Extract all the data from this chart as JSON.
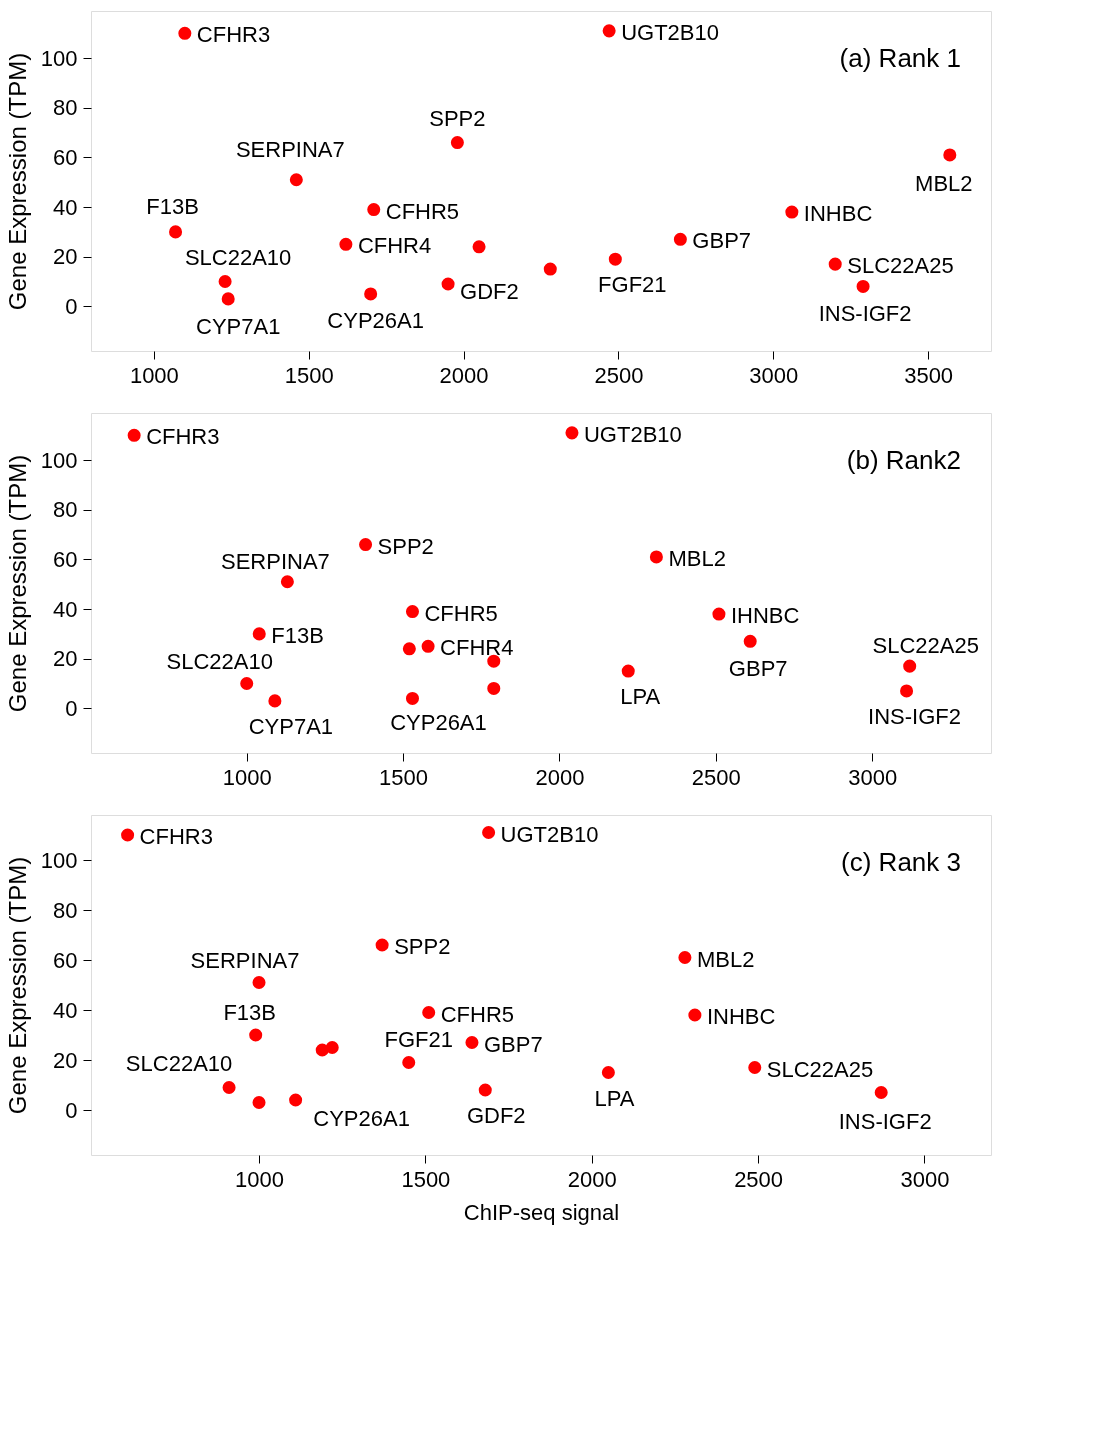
{
  "chart_data": [
    {
      "type": "scatter",
      "ylabel": "Gene Expression (TPM)",
      "xlim": [
        797,
        3703
      ],
      "ylim": [
        -18,
        119
      ],
      "xticks": [
        1000,
        1500,
        2000,
        2500,
        3000,
        3500
      ],
      "yticks": [
        0,
        20,
        40,
        60,
        80,
        100
      ],
      "grid": false,
      "marker": "circle",
      "series": [
        {
          "color": "#ff0000",
          "x": [
            1100,
            2470,
            1980,
            1460,
            3570,
            1070,
            1710,
            3060,
            1620,
            2050,
            2700,
            1230,
            1240,
            1700,
            1950,
            2280,
            2490,
            3200,
            3290
          ],
          "values": [
            110,
            111,
            66,
            51,
            61,
            30,
            39,
            38,
            25,
            24,
            27,
            10,
            3,
            5,
            9,
            15,
            19,
            17,
            8
          ]
        }
      ],
      "annotations": [
        {
          "text": "CFHR3",
          "x": 1100,
          "y": 110
        },
        {
          "text": "UGT2B10",
          "x": 2470,
          "y": 111
        },
        {
          "text": "SPP2",
          "x": 1980,
          "y": 66
        },
        {
          "text": "SERPINA7",
          "x": 1460,
          "y": 51
        },
        {
          "text": "MBL2",
          "x": 3570,
          "y": 61
        },
        {
          "text": "F13B",
          "x": 1070,
          "y": 30
        },
        {
          "text": "CFHR5",
          "x": 1710,
          "y": 39
        },
        {
          "text": "INHBC",
          "x": 3060,
          "y": 38
        },
        {
          "text": "CFHR4",
          "x": 1620,
          "y": 25
        },
        {
          "text": "GBP7",
          "x": 2700,
          "y": 27
        },
        {
          "text": "SLC22A10",
          "x": 1230,
          "y": 10
        },
        {
          "text": "CYP7A1",
          "x": 1240,
          "y": 3
        },
        {
          "text": "CYP26A1",
          "x": 1700,
          "y": 5
        },
        {
          "text": "GDF2",
          "x": 1950,
          "y": 9
        },
        {
          "text": "FGF21",
          "x": 2490,
          "y": 19
        },
        {
          "text": "SLC22A25",
          "x": 3200,
          "y": 17
        },
        {
          "text": "INS-IGF2",
          "x": 3290,
          "y": 8
        },
        "(a) Rank 1"
      ]
    },
    {
      "type": "scatter",
      "ylabel": "Gene Expression (TPM)",
      "xlim": [
        502,
        3380
      ],
      "ylim": [
        -18,
        119
      ],
      "xticks": [
        1000,
        1500,
        2000,
        2500,
        3000
      ],
      "yticks": [
        0,
        20,
        40,
        60,
        80,
        100
      ],
      "grid": false,
      "marker": "circle",
      "series": [
        {
          "color": "#ff0000",
          "x": [
            640,
            2040,
            1380,
            1130,
            2310,
            1530,
            2510,
            1040,
            1520,
            1580,
            2610,
            1790,
            2220,
            3120,
            1000,
            1090,
            1530,
            1790,
            3110
          ],
          "values": [
            110,
            111,
            66,
            51,
            61,
            39,
            38,
            30,
            24,
            25,
            27,
            19,
            15,
            17,
            10,
            3,
            4,
            8,
            7
          ]
        }
      ],
      "annotations": [
        {
          "text": "CFHR3",
          "x": 640,
          "y": 110
        },
        {
          "text": "UGT2B10",
          "x": 2040,
          "y": 111
        },
        {
          "text": "SPP2",
          "x": 1380,
          "y": 66
        },
        {
          "text": "SERPINA7",
          "x": 1130,
          "y": 51
        },
        {
          "text": "MBL2",
          "x": 2310,
          "y": 61
        },
        {
          "text": "CFHR5",
          "x": 1530,
          "y": 39
        },
        {
          "text": "IHNBC",
          "x": 2510,
          "y": 38
        },
        {
          "text": "F13B",
          "x": 1040,
          "y": 30
        },
        {
          "text": "CFHR4",
          "x": 1580,
          "y": 25
        },
        {
          "text": "GBP7",
          "x": 2610,
          "y": 27
        },
        {
          "text": "LPA",
          "x": 2220,
          "y": 15
        },
        {
          "text": "SLC22A25",
          "x": 3120,
          "y": 17
        },
        {
          "text": "SLC22A10",
          "x": 1000,
          "y": 10
        },
        {
          "text": "CYP7A1",
          "x": 1090,
          "y": 3
        },
        {
          "text": "CYP26A1",
          "x": 1530,
          "y": 4
        },
        {
          "text": "INS-IGF2",
          "x": 3110,
          "y": 7
        },
        "(b) Rank2"
      ]
    },
    {
      "type": "scatter",
      "xlabel": "ChIP-seq signal",
      "ylabel": "Gene Expression (TPM)",
      "xlim": [
        495,
        3200
      ],
      "ylim": [
        -18,
        118
      ],
      "xticks": [
        1000,
        1500,
        2000,
        2500,
        3000
      ],
      "yticks": [
        0,
        20,
        40,
        60,
        80,
        100
      ],
      "grid": false,
      "marker": "circle",
      "series": [
        {
          "color": "#ff0000",
          "x": [
            605,
            1690,
            1370,
            1000,
            2280,
            1510,
            2310,
            990,
            1190,
            1220,
            1450,
            1640,
            2050,
            2490,
            910,
            1000,
            1110,
            1680,
            2870
          ],
          "values": [
            110,
            111,
            66,
            51,
            61,
            39,
            38,
            30,
            24,
            25,
            19,
            27,
            15,
            17,
            9,
            3,
            4,
            8,
            7
          ]
        }
      ],
      "annotations": [
        {
          "text": "CFHR3",
          "x": 605,
          "y": 110
        },
        {
          "text": "UGT2B10",
          "x": 1690,
          "y": 111
        },
        {
          "text": "SPP2",
          "x": 1370,
          "y": 66
        },
        {
          "text": "SERPINA7",
          "x": 1000,
          "y": 51
        },
        {
          "text": "MBL2",
          "x": 2280,
          "y": 61
        },
        {
          "text": "CFHR5",
          "x": 1510,
          "y": 39
        },
        {
          "text": "INHBC",
          "x": 2310,
          "y": 38
        },
        {
          "text": "F13B",
          "x": 990,
          "y": 30
        },
        {
          "text": "FGF21",
          "x": 1450,
          "y": 19
        },
        {
          "text": "GBP7",
          "x": 1640,
          "y": 27
        },
        {
          "text": "LPA",
          "x": 2050,
          "y": 15
        },
        {
          "text": "SLC22A25",
          "x": 2490,
          "y": 17
        },
        {
          "text": "SLC22A10",
          "x": 910,
          "y": 9
        },
        {
          "text": "CYP26A1",
          "x": 1110,
          "y": 4
        },
        {
          "text": "GDF2",
          "x": 1680,
          "y": 8
        },
        {
          "text": "INS-IGF2",
          "x": 2870,
          "y": 7
        },
        "(c) Rank 3"
      ]
    }
  ]
}
